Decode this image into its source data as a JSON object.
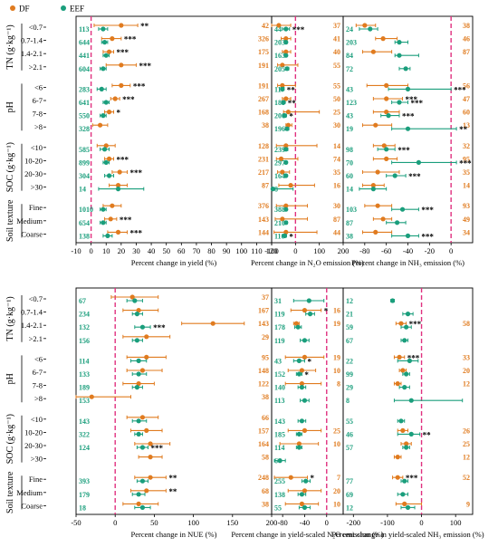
{
  "legend": [
    {
      "label": "DF",
      "color": "#e07b1f"
    },
    {
      "label": "EEF",
      "color": "#1a9e7c"
    }
  ],
  "colors": {
    "df": "#e07b1f",
    "eef": "#1a9e7c",
    "zero_line": "#e0317f",
    "frame": "#000000"
  },
  "groups": [
    {
      "name": "TN (g·kg⁻¹)",
      "categories": [
        "<0.7",
        "0.7-1.4",
        "1.4-2.1",
        ">2.1"
      ]
    },
    {
      "name": "pH",
      "categories": [
        "<6",
        "6-7",
        "7-8",
        ">8"
      ]
    },
    {
      "name": "SOC (g·kg⁻¹)",
      "categories": [
        "<10",
        "10-20",
        "20-30",
        ">30"
      ]
    },
    {
      "name": "Soil texture",
      "categories": [
        "Fine",
        "Medium",
        "Coarse"
      ]
    }
  ],
  "chart_data": [
    {
      "type": "scatter",
      "xlabel": "Percent change in yield (%)",
      "xlim": [
        -10,
        120
      ],
      "xticks": [
        -10,
        0,
        10,
        20,
        30,
        40,
        50,
        60,
        70,
        80,
        90,
        100,
        110,
        120
      ],
      "series": [
        {
          "name": "DF",
          "n": [
            42,
            326,
            175,
            191,
            191,
            267,
            168,
            38,
            128,
            231,
            217,
            87,
            376,
            143,
            144
          ],
          "mean": [
            20,
            14,
            12,
            20,
            20,
            16,
            12,
            6,
            10,
            12,
            19,
            18,
            14,
            13,
            18
          ],
          "lo": [
            2,
            7,
            8,
            10,
            14,
            13,
            9,
            1,
            4,
            9,
            14,
            12,
            8,
            9,
            11
          ],
          "hi": [
            31,
            20,
            15,
            30,
            26,
            19,
            15,
            11,
            16,
            15,
            24,
            24,
            20,
            17,
            24
          ],
          "sig": [
            "**",
            "***",
            "***",
            "***",
            "***",
            "***",
            "*",
            "",
            "",
            "***",
            "***",
            "",
            "",
            "***",
            "***"
          ]
        },
        {
          "name": "EEF",
          "n": [
            113,
            644,
            441,
            604,
            283,
            641,
            550,
            328,
            585,
            899,
            304,
            14,
            1010,
            654,
            138
          ],
          "mean": [
            8,
            9,
            10,
            8,
            7,
            10,
            8,
            null,
            9,
            10,
            12,
            18,
            8,
            8,
            11
          ],
          "lo": [
            5,
            7,
            8,
            6,
            4,
            8,
            6,
            null,
            6,
            8,
            9,
            5,
            6,
            6,
            8
          ],
          "hi": [
            11,
            11,
            12,
            10,
            10,
            12,
            10,
            null,
            12,
            12,
            15,
            35,
            10,
            10,
            14
          ],
          "sig": [
            "",
            "",
            "",
            "",
            "",
            "",
            "",
            "",
            "",
            "",
            "",
            "",
            "",
            "",
            ""
          ]
        }
      ]
    },
    {
      "type": "scatter",
      "xlabel": "Percent change in N₂O emission (%)",
      "xlim": [
        -100,
        200
      ],
      "xticks": [
        -100,
        0,
        100,
        200
      ],
      "series": [
        {
          "name": "DF",
          "n": [
            37,
            41,
            40,
            55,
            55,
            50,
            25,
            30,
            14,
            74,
            35,
            16,
            30,
            87,
            44
          ],
          "mean": [
            -70,
            -40,
            -40,
            -55,
            -55,
            -40,
            -30,
            -30,
            -40,
            -60,
            -55,
            -20,
            -40,
            -55,
            -40
          ],
          "lo": [
            -100,
            -60,
            -55,
            -75,
            -75,
            -55,
            -50,
            -40,
            -80,
            -80,
            -75,
            -70,
            -80,
            -85,
            -90
          ],
          "hi": [
            -20,
            -20,
            -20,
            10,
            0,
            -20,
            100,
            -15,
            90,
            10,
            -25,
            80,
            50,
            50,
            90
          ],
          "sig": [
            "",
            "",
            "",
            "",
            "",
            "",
            "",
            "",
            "",
            "",
            "",
            "",
            "",
            "",
            ""
          ]
        },
        {
          "name": "EEF",
          "n": [
            44,
            203,
            163,
            205,
            117,
            189,
            206,
            196,
            239,
            297,
            164,
            8,
            388,
            210,
            110
          ],
          "mean": [
            -40,
            -40,
            -40,
            -35,
            -55,
            -50,
            -45,
            -35,
            -40,
            -40,
            -40,
            -95,
            -40,
            -40,
            -45
          ],
          "lo": [
            -55,
            -45,
            -45,
            -42,
            -62,
            -56,
            -52,
            -42,
            -48,
            -45,
            -45,
            -120,
            -45,
            -46,
            -52
          ],
          "hi": [
            -25,
            -35,
            -35,
            -28,
            -48,
            -44,
            -38,
            -28,
            -32,
            -35,
            -35,
            -10,
            -35,
            -34,
            -38
          ],
          "sig": [
            "***",
            "",
            "",
            "",
            "**",
            "**",
            "*",
            "",
            "",
            "",
            "",
            "",
            "",
            "",
            "*"
          ]
        }
      ]
    },
    {
      "type": "scatter",
      "xlabel": "Percent change in NH₃ emission (%)",
      "xlim": [
        -100,
        20
      ],
      "xticks": [
        -80,
        -60,
        -40,
        -20,
        0
      ],
      "series": [
        {
          "name": "DF",
          "n": [
            38,
            46,
            87,
            null,
            56,
            47,
            60,
            13,
            32,
            95,
            35,
            14,
            93,
            49,
            34
          ],
          "mean": [
            -80,
            -63,
            -72,
            null,
            -60,
            -60,
            -60,
            -70,
            -62,
            -60,
            -68,
            -72,
            -68,
            -63,
            -70
          ],
          "lo": [
            -88,
            -70,
            -82,
            null,
            -78,
            -72,
            -72,
            -82,
            -72,
            -72,
            -82,
            -82,
            -80,
            -72,
            -82
          ],
          "hi": [
            -70,
            -50,
            -55,
            null,
            -40,
            -45,
            -48,
            -55,
            -52,
            -50,
            -48,
            -62,
            -55,
            -55,
            -55
          ],
          "sig": [
            "",
            "",
            "",
            "",
            "",
            "***",
            "",
            "",
            "",
            "",
            "",
            "",
            "",
            "",
            ""
          ]
        },
        {
          "name": "EEF",
          "n": [
            24,
            203,
            84,
            72,
            43,
            123,
            43,
            19,
            98,
            70,
            60,
            14,
            103,
            87,
            38
          ],
          "mean": [
            -75,
            -48,
            -48,
            -42,
            -40,
            -48,
            -58,
            -40,
            -60,
            -30,
            -52,
            -72,
            -45,
            -50,
            -40
          ],
          "lo": [
            -85,
            -52,
            -52,
            -48,
            -58,
            -55,
            -65,
            -55,
            -68,
            -55,
            -60,
            -85,
            -55,
            -60,
            -55
          ],
          "hi": [
            -68,
            -40,
            -30,
            -38,
            0,
            -40,
            -48,
            5,
            -52,
            5,
            -42,
            -60,
            -30,
            -42,
            -30
          ],
          "sig": [
            "",
            "",
            "",
            "",
            "***",
            "***",
            "***",
            "**",
            "***",
            "***",
            "***",
            "",
            "***",
            "",
            "***"
          ]
        }
      ]
    },
    {
      "type": "scatter",
      "xlabel": "Percent change in NUE (%)",
      "xlim": [
        -50,
        200
      ],
      "xticks": [
        -50,
        0,
        50,
        100,
        150,
        200
      ],
      "series": [
        {
          "name": "DF",
          "n": [
            37,
            167,
            143,
            29,
            95,
            148,
            122,
            38,
            66,
            157,
            164,
            58,
            248,
            68,
            38
          ],
          "mean": [
            22,
            30,
            125,
            40,
            40,
            35,
            30,
            -30,
            35,
            40,
            45,
            45,
            45,
            40,
            30
          ],
          "lo": [
            -5,
            10,
            85,
            10,
            15,
            15,
            10,
            -80,
            15,
            20,
            25,
            30,
            25,
            20,
            10
          ],
          "hi": [
            55,
            55,
            165,
            70,
            65,
            60,
            50,
            20,
            55,
            60,
            70,
            60,
            65,
            65,
            55
          ],
          "sig": [
            "",
            "",
            "",
            "",
            "",
            "",
            "",
            "",
            "",
            "",
            "",
            "",
            "**",
            "**",
            ""
          ]
        },
        {
          "name": "EEF",
          "n": [
            67,
            234,
            132,
            156,
            114,
            133,
            189,
            153,
            143,
            322,
            124,
            null,
            393,
            179,
            18
          ],
          "mean": [
            25,
            28,
            35,
            28,
            30,
            30,
            28,
            null,
            30,
            30,
            35,
            null,
            35,
            30,
            35
          ],
          "lo": [
            15,
            22,
            25,
            22,
            20,
            22,
            22,
            null,
            22,
            25,
            28,
            null,
            28,
            22,
            25
          ],
          "hi": [
            35,
            35,
            45,
            35,
            40,
            40,
            35,
            null,
            40,
            35,
            42,
            null,
            42,
            38,
            45
          ],
          "sig": [
            "",
            "",
            "***",
            "",
            "",
            "",
            "",
            "",
            "",
            "",
            "***",
            "",
            "",
            "",
            ""
          ]
        }
      ]
    },
    {
      "type": "scatter",
      "xlabel": "Percent change in yield-scaled N₂O emission (%)",
      "xlim": [
        -100,
        30
      ],
      "xticks": [
        -80,
        -40,
        0
      ],
      "series": [
        {
          "name": "DF",
          "n": [
            null,
            16,
            19,
            null,
            19,
            10,
            8,
            null,
            null,
            25,
            10,
            null,
            7,
            20,
            10
          ],
          "mean": [
            null,
            -40,
            -55,
            null,
            -40,
            -45,
            -45,
            null,
            null,
            -40,
            -50,
            null,
            -65,
            -40,
            -45
          ],
          "lo": [
            null,
            -65,
            -60,
            null,
            -75,
            -70,
            -75,
            null,
            null,
            -70,
            -85,
            null,
            -95,
            -70,
            -75
          ],
          "hi": [
            null,
            -10,
            -50,
            null,
            -5,
            -20,
            -10,
            null,
            null,
            -10,
            -15,
            null,
            -35,
            -10,
            -15
          ],
          "sig": [
            "",
            "*",
            "",
            "",
            "",
            "",
            "",
            "",
            "",
            "",
            "",
            "",
            "*",
            "",
            ""
          ]
        },
        {
          "name": "EEF",
          "n": [
            31,
            119,
            178,
            119,
            43,
            152,
            140,
            113,
            143,
            185,
            114,
            6,
            255,
            138,
            55
          ],
          "mean": [
            -32,
            -30,
            -52,
            -40,
            -50,
            -50,
            -45,
            -40,
            -45,
            -50,
            -50,
            -85,
            -38,
            -45,
            -40
          ],
          "lo": [
            -60,
            -38,
            -58,
            -48,
            -60,
            -55,
            -52,
            -48,
            -52,
            -55,
            -55,
            -95,
            -45,
            -52,
            -50
          ],
          "hi": [
            -5,
            -22,
            -46,
            -32,
            -40,
            -45,
            -38,
            -32,
            -38,
            -45,
            -45,
            -75,
            -30,
            -38,
            -30
          ],
          "sig": [
            "",
            "",
            "",
            "",
            "*",
            "*",
            "",
            "",
            "",
            "",
            "",
            "",
            "",
            "",
            ""
          ]
        }
      ]
    },
    {
      "type": "scatter",
      "xlabel": "Percent change in yield-scaled NH₃ emission (%)",
      "xlim": [
        -230,
        150
      ],
      "xticks": [
        -200,
        -100,
        0,
        100
      ],
      "series": [
        {
          "name": "DF",
          "n": [
            null,
            null,
            58,
            null,
            33,
            20,
            12,
            null,
            null,
            26,
            25,
            12,
            52,
            null,
            9
          ],
          "mean": [
            null,
            null,
            -60,
            null,
            -65,
            -55,
            -70,
            null,
            null,
            -55,
            -45,
            -70,
            -70,
            null,
            -50
          ],
          "lo": [
            null,
            null,
            -75,
            null,
            -80,
            -65,
            -80,
            null,
            null,
            -70,
            -60,
            -80,
            -85,
            null,
            -75
          ],
          "hi": [
            null,
            null,
            -45,
            null,
            -50,
            -45,
            -60,
            null,
            null,
            -40,
            -30,
            -60,
            -55,
            null,
            0
          ],
          "sig": [
            "",
            "",
            "***",
            "",
            "***",
            "",
            "",
            "",
            "",
            "",
            "",
            "",
            "***",
            "",
            ""
          ]
        },
        {
          "name": "EEF",
          "n": [
            12,
            21,
            59,
            67,
            22,
            99,
            29,
            8,
            55,
            46,
            57,
            null,
            77,
            69,
            12
          ],
          "mean": [
            -85,
            -40,
            -45,
            -50,
            -35,
            -45,
            -50,
            -30,
            -60,
            -30,
            -45,
            null,
            -50,
            -55,
            -40
          ],
          "lo": [
            -90,
            -55,
            -60,
            -60,
            -70,
            -55,
            -65,
            -80,
            -70,
            -70,
            -55,
            null,
            -60,
            -70,
            -60
          ],
          "hi": [
            -80,
            -25,
            -30,
            -40,
            -10,
            -35,
            -35,
            120,
            -50,
            -5,
            -35,
            null,
            -40,
            -40,
            -20
          ],
          "sig": [
            "",
            "",
            "",
            "",
            "",
            "",
            "",
            "",
            "",
            "**",
            "",
            "",
            "",
            "",
            ""
          ]
        }
      ]
    }
  ]
}
